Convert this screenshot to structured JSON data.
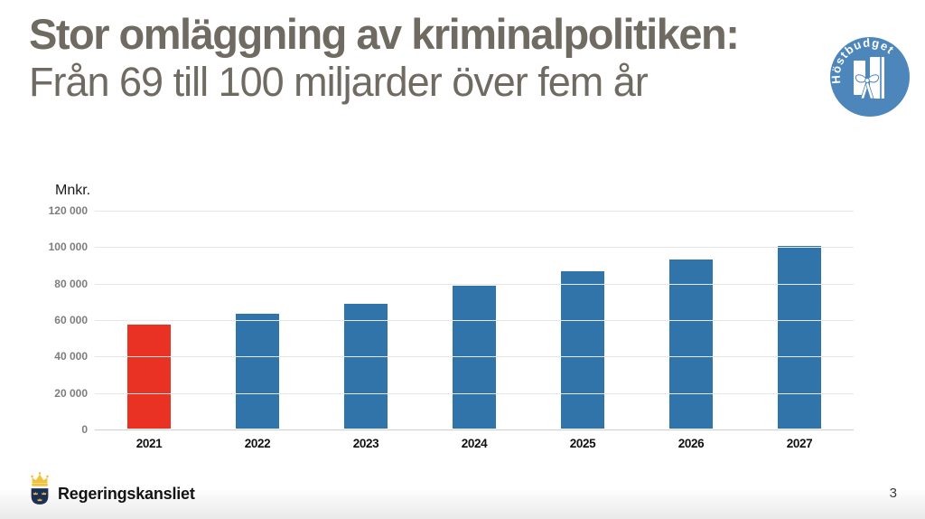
{
  "slide": {
    "title": "Stor omläggning av kriminalpolitiken:",
    "subtitle": "Från 69 till 100 miljarder över fem år",
    "title_color": "#6f6b62",
    "page_number": "3"
  },
  "badge": {
    "label": "Höstbudget",
    "circle_color": "#4d86ba",
    "icon": "budget-bill-with-ribbon-icon"
  },
  "footer": {
    "org_name": "Regeringskansliet",
    "logo": "sweden-coat-of-arms-icon",
    "logo_shield_color": "#1b3054",
    "logo_crown_color": "#f0c33c"
  },
  "chart_data": {
    "type": "bar",
    "title": "",
    "xlabel": "",
    "ylabel": "Mnkr.",
    "categories": [
      "2021",
      "2022",
      "2023",
      "2024",
      "2025",
      "2026",
      "2027"
    ],
    "values": [
      57300,
      63100,
      68900,
      78500,
      86600,
      93200,
      100400
    ],
    "bar_colors": [
      "#e93223",
      "#3174a9",
      "#3174a9",
      "#3174a9",
      "#3174a9",
      "#3174a9",
      "#3174a9"
    ],
    "highlight_color": "#e93223",
    "series_color": "#3174a9",
    "ylim": [
      0,
      120000
    ],
    "ytick_step": 20000,
    "ytick_labels": [
      "0",
      "20 000",
      "40 000",
      "60 000",
      "80 000",
      "100 000",
      "120 000"
    ],
    "grid": true,
    "legend_position": "none"
  }
}
